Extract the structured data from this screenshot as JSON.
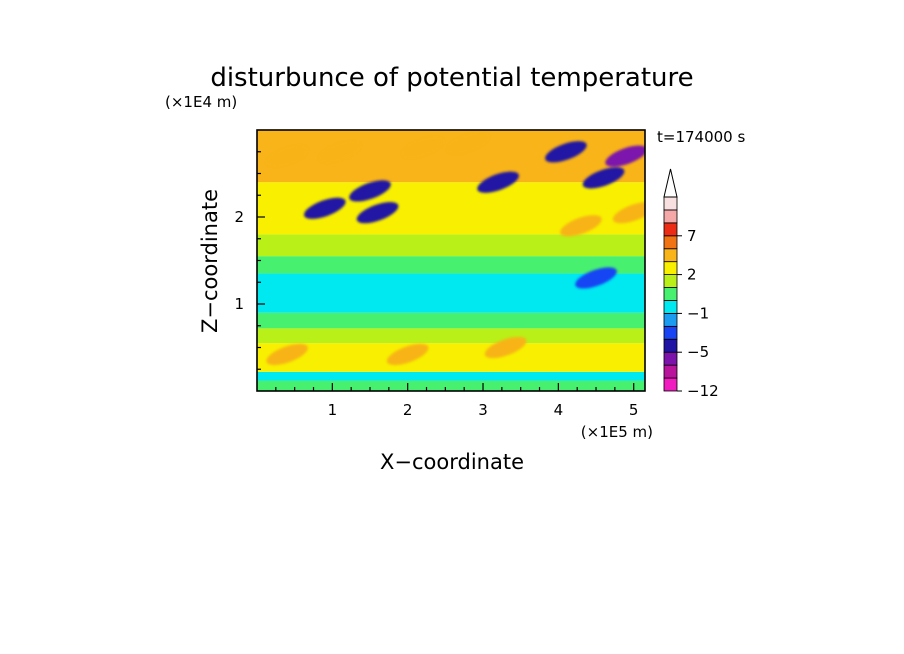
{
  "chart_data": {
    "type": "heatmap",
    "title": "disturbunce of potential temperature",
    "xlabel": "X−coordinate",
    "ylabel": "Z−coordinate",
    "x_unit": "(×1E5 m)",
    "y_unit": "(×1E4 m)",
    "time_label": "t=174000 s",
    "xlim": [
      0,
      5.15
    ],
    "ylim": [
      0,
      3.0
    ],
    "x_ticks": [
      1,
      2,
      3,
      4,
      5
    ],
    "y_ticks": [
      1,
      2
    ],
    "colorbar": {
      "levels": [
        -12,
        -9,
        -7,
        -5,
        -3,
        -2,
        -1,
        0,
        1,
        2,
        3,
        5,
        7,
        9,
        12
      ],
      "tick_labels": [
        "−12",
        "−5",
        "−1",
        "2",
        "7"
      ],
      "tick_values": [
        -12,
        -5,
        -1,
        2,
        7
      ],
      "colors": [
        "#f01cc0",
        "#b8149c",
        "#7c14ac",
        "#2014a4",
        "#1844f4",
        "#1c9cf0",
        "#00e8f0",
        "#48f070",
        "#b8f018",
        "#f8f000",
        "#f8b418",
        "#f07414",
        "#ec2c14",
        "#f4a8a8",
        "#f8e0e0"
      ],
      "extend": "max"
    },
    "bands": [
      {
        "z": [
          0.0,
          0.12
        ],
        "value": 0.5
      },
      {
        "z": [
          0.12,
          0.22
        ],
        "value": -0.3
      },
      {
        "z": [
          0.22,
          0.55
        ],
        "value": 2.5
      },
      {
        "z": [
          0.55,
          0.72
        ],
        "value": 1.5
      },
      {
        "z": [
          0.72,
          0.9
        ],
        "value": 0.3
      },
      {
        "z": [
          0.9,
          1.35
        ],
        "value": -0.6
      },
      {
        "z": [
          1.35,
          1.55
        ],
        "value": 0.3
      },
      {
        "z": [
          1.55,
          1.8
        ],
        "value": 1.5
      },
      {
        "z": [
          1.8,
          2.4
        ],
        "value": 2.2
      },
      {
        "z": [
          2.4,
          3.0
        ],
        "value": 3.5
      }
    ],
    "features": [
      {
        "x": 0.9,
        "z": 2.1,
        "value": -4
      },
      {
        "x": 1.5,
        "z": 2.3,
        "value": -4
      },
      {
        "x": 1.6,
        "z": 2.05,
        "value": -4
      },
      {
        "x": 3.2,
        "z": 2.4,
        "value": -4
      },
      {
        "x": 4.1,
        "z": 2.75,
        "value": -4
      },
      {
        "x": 4.6,
        "z": 2.45,
        "value": -4
      },
      {
        "x": 4.9,
        "z": 2.7,
        "value": -6
      },
      {
        "x": 0.4,
        "z": 2.7,
        "value": 4
      },
      {
        "x": 1.1,
        "z": 2.75,
        "value": 4
      },
      {
        "x": 2.2,
        "z": 2.8,
        "value": 4
      },
      {
        "x": 2.8,
        "z": 2.85,
        "value": 3
      },
      {
        "x": 5.0,
        "z": 2.05,
        "value": 4
      },
      {
        "x": 4.3,
        "z": 1.9,
        "value": 4
      },
      {
        "x": 4.5,
        "z": 1.3,
        "value": -3
      },
      {
        "x": 0.4,
        "z": 0.42,
        "value": 3
      },
      {
        "x": 2.0,
        "z": 0.42,
        "value": 3
      },
      {
        "x": 3.3,
        "z": 0.5,
        "value": 3
      }
    ]
  }
}
